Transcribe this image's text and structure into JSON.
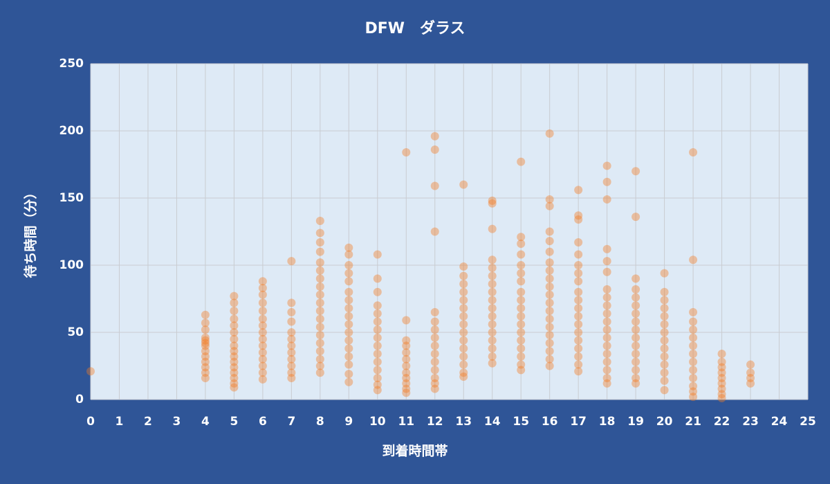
{
  "chart_data": {
    "type": "scatter",
    "title": "DFW　ダラス",
    "xlabel": "到着時間帯",
    "ylabel": "待ち時間（分）",
    "color": "#f47a20",
    "grid": true,
    "xlim": [
      0,
      25
    ],
    "xticks": [
      0,
      1,
      2,
      3,
      4,
      5,
      6,
      7,
      8,
      9,
      10,
      11,
      12,
      13,
      14,
      15,
      16,
      17,
      18,
      19,
      20,
      21,
      22,
      23,
      24,
      25
    ],
    "ylim": [
      0,
      250
    ],
    "yticks": [
      0,
      50,
      100,
      150,
      200,
      250
    ],
    "x": [
      0,
      4,
      4,
      4,
      4,
      4,
      4,
      4,
      4,
      4,
      4,
      4,
      4,
      4,
      5,
      5,
      5,
      5,
      5,
      5,
      5,
      5,
      5,
      5,
      5,
      5,
      5,
      5,
      5,
      5,
      6,
      6,
      6,
      6,
      6,
      6,
      6,
      6,
      6,
      6,
      6,
      6,
      6,
      6,
      6,
      7,
      7,
      7,
      7,
      7,
      7,
      7,
      7,
      7,
      7,
      7,
      7,
      8,
      8,
      8,
      8,
      8,
      8,
      8,
      8,
      8,
      8,
      8,
      8,
      8,
      8,
      8,
      8,
      8,
      8,
      8,
      9,
      9,
      9,
      9,
      9,
      9,
      9,
      9,
      9,
      9,
      9,
      9,
      9,
      9,
      9,
      9,
      9,
      10,
      10,
      10,
      10,
      10,
      10,
      10,
      10,
      10,
      10,
      10,
      10,
      10,
      10,
      10,
      11,
      11,
      11,
      11,
      11,
      11,
      11,
      11,
      11,
      11,
      11,
      11,
      12,
      12,
      12,
      12,
      12,
      12,
      12,
      12,
      12,
      12,
      12,
      12,
      12,
      12,
      12,
      13,
      13,
      13,
      13,
      13,
      13,
      13,
      13,
      13,
      13,
      13,
      13,
      13,
      13,
      13,
      13,
      14,
      14,
      14,
      14,
      14,
      14,
      14,
      14,
      14,
      14,
      14,
      14,
      14,
      14,
      14,
      14,
      14,
      15,
      15,
      15,
      15,
      15,
      15,
      15,
      15,
      15,
      15,
      15,
      15,
      15,
      15,
      15,
      15,
      15,
      15,
      16,
      16,
      16,
      16,
      16,
      16,
      16,
      16,
      16,
      16,
      16,
      16,
      16,
      16,
      16,
      16,
      16,
      16,
      16,
      16,
      17,
      17,
      17,
      17,
      17,
      17,
      17,
      17,
      17,
      17,
      17,
      17,
      17,
      17,
      17,
      17,
      17,
      17,
      17,
      18,
      18,
      18,
      18,
      18,
      18,
      18,
      18,
      18,
      18,
      18,
      18,
      18,
      18,
      18,
      18,
      18,
      18,
      18,
      19,
      19,
      19,
      19,
      19,
      19,
      19,
      19,
      19,
      19,
      19,
      19,
      19,
      19,
      19,
      19,
      20,
      20,
      20,
      20,
      20,
      20,
      20,
      20,
      20,
      20,
      20,
      20,
      20,
      20,
      21,
      21,
      21,
      21,
      21,
      21,
      21,
      21,
      21,
      21,
      21,
      21,
      21,
      21,
      22,
      22,
      22,
      22,
      22,
      22,
      22,
      22,
      22,
      23,
      23,
      23,
      23
    ],
    "values": [
      21,
      63,
      57,
      52,
      46,
      44,
      42,
      40,
      36,
      32,
      28,
      24,
      20,
      16,
      77,
      72,
      66,
      60,
      55,
      50,
      45,
      40,
      36,
      32,
      28,
      24,
      20,
      16,
      12,
      9,
      88,
      83,
      78,
      72,
      66,
      60,
      55,
      50,
      45,
      40,
      35,
      30,
      25,
      20,
      15,
      103,
      72,
      65,
      58,
      50,
      45,
      40,
      35,
      30,
      25,
      20,
      16,
      133,
      124,
      117,
      110,
      102,
      96,
      90,
      84,
      78,
      72,
      66,
      60,
      54,
      48,
      42,
      36,
      30,
      25,
      20,
      113,
      108,
      100,
      94,
      88,
      80,
      74,
      68,
      62,
      56,
      50,
      44,
      38,
      32,
      26,
      19,
      13,
      108,
      90,
      80,
      70,
      64,
      58,
      52,
      46,
      40,
      34,
      28,
      22,
      16,
      11,
      7,
      184,
      59,
      44,
      40,
      35,
      30,
      25,
      20,
      16,
      12,
      8,
      5,
      196,
      186,
      159,
      125,
      65,
      58,
      52,
      46,
      40,
      34,
      28,
      22,
      16,
      12,
      8,
      160,
      99,
      92,
      86,
      80,
      74,
      68,
      62,
      56,
      50,
      44,
      38,
      32,
      26,
      20,
      17,
      148,
      146,
      127,
      104,
      98,
      92,
      86,
      80,
      74,
      68,
      62,
      56,
      50,
      44,
      38,
      32,
      27,
      177,
      121,
      116,
      108,
      100,
      94,
      88,
      80,
      74,
      68,
      62,
      56,
      50,
      44,
      38,
      32,
      26,
      22,
      198,
      149,
      144,
      125,
      118,
      110,
      102,
      96,
      90,
      84,
      78,
      72,
      66,
      60,
      54,
      48,
      42,
      36,
      30,
      25,
      156,
      137,
      134,
      117,
      108,
      100,
      94,
      88,
      80,
      74,
      68,
      62,
      56,
      50,
      44,
      38,
      32,
      26,
      21,
      174,
      162,
      149,
      112,
      103,
      95,
      82,
      76,
      70,
      64,
      58,
      52,
      46,
      40,
      34,
      28,
      22,
      16,
      12,
      170,
      136,
      90,
      82,
      76,
      70,
      64,
      58,
      52,
      46,
      40,
      34,
      28,
      22,
      16,
      12,
      94,
      80,
      74,
      68,
      62,
      56,
      50,
      44,
      38,
      32,
      26,
      20,
      14,
      7,
      184,
      104,
      65,
      58,
      52,
      46,
      40,
      34,
      28,
      22,
      16,
      10,
      6,
      2,
      34,
      28,
      24,
      20,
      16,
      12,
      8,
      4,
      1,
      26,
      20,
      16,
      12
    ]
  }
}
